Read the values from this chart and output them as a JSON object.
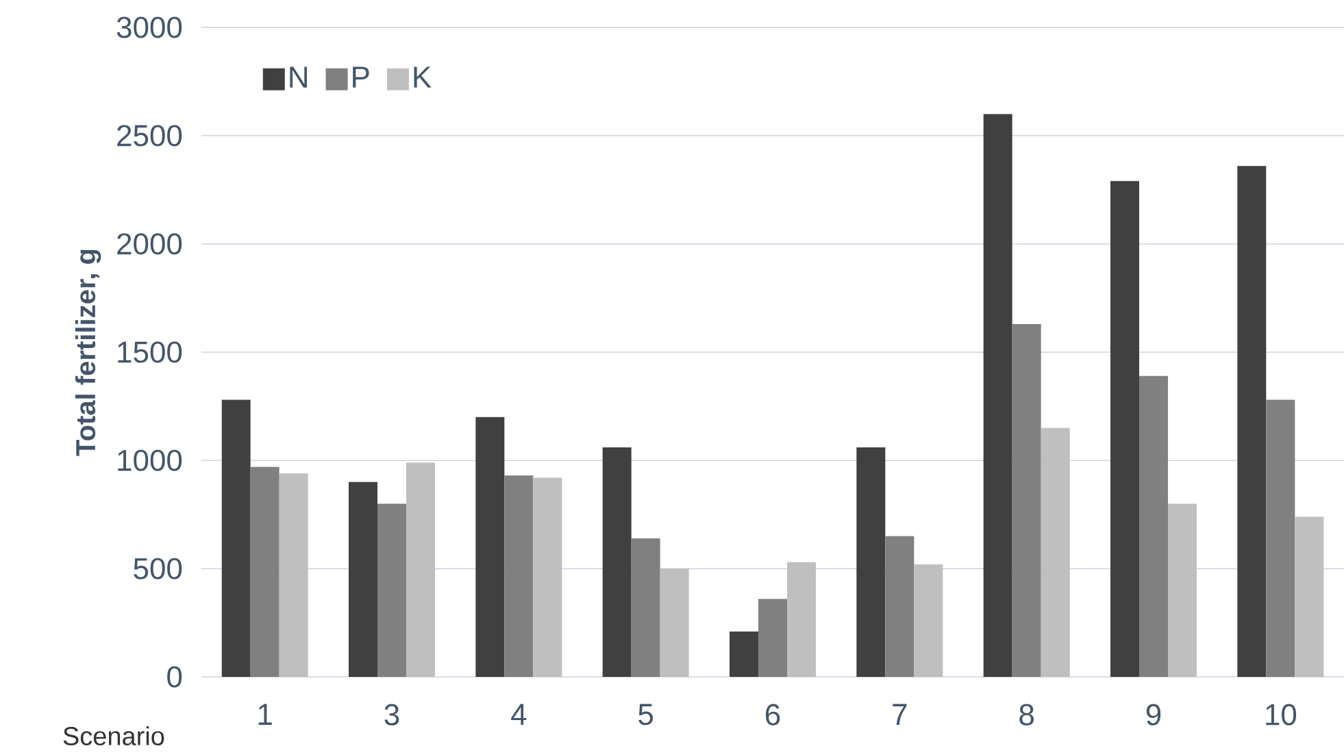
{
  "chart_data": {
    "type": "bar",
    "ylabel": "Total fertilizer, g",
    "xlabel": "Scenario",
    "categories": [
      "1",
      "3",
      "4",
      "5",
      "6",
      "7",
      "8",
      "9",
      "10"
    ],
    "series": [
      {
        "name": "N",
        "color": "#404040",
        "values": [
          1280,
          900,
          1200,
          1060,
          210,
          1060,
          2600,
          2290,
          2360
        ]
      },
      {
        "name": "P",
        "color": "#808080",
        "values": [
          970,
          800,
          930,
          640,
          360,
          650,
          1630,
          1390,
          1280
        ]
      },
      {
        "name": "K",
        "color": "#bfbfbf",
        "values": [
          940,
          990,
          920,
          500,
          530,
          520,
          1150,
          800,
          740
        ]
      }
    ],
    "ylim": [
      0,
      3000
    ],
    "yticks": [
      0,
      500,
      1000,
      1500,
      2000,
      2500,
      3000
    ],
    "grid": "y",
    "legend": "top left"
  }
}
